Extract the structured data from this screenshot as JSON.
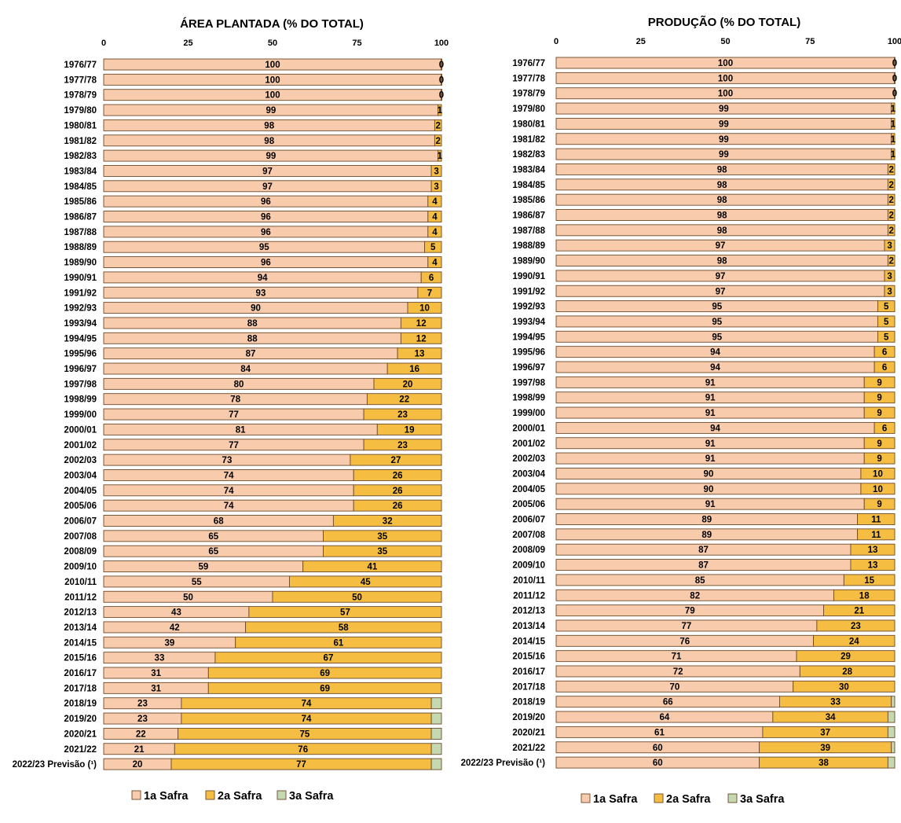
{
  "chart_data": [
    {
      "type": "bar",
      "orientation": "horizontal",
      "stacked": true,
      "title": "ÁREA PLANTADA (% DO TOTAL)",
      "xlim": [
        0,
        100
      ],
      "xticks": [
        "0",
        "25",
        "50",
        "75",
        "100"
      ],
      "legend": {
        "placement": "bottom",
        "entries": [
          "1a Safra",
          "2a Safra",
          "3a Safra"
        ]
      },
      "categories": [
        "1976/77",
        "1977/78",
        "1978/79",
        "1979/80",
        "1980/81",
        "1981/82",
        "1982/83",
        "1983/84",
        "1984/85",
        "1985/86",
        "1986/87",
        "1987/88",
        "1988/89",
        "1989/90",
        "1990/91",
        "1991/92",
        "1992/93",
        "1993/94",
        "1994/95",
        "1995/96",
        "1996/97",
        "1997/98",
        "1998/99",
        "1999/00",
        "2000/01",
        "2001/02",
        "2002/03",
        "2003/04",
        "2004/05",
        "2005/06",
        "2006/07",
        "2007/08",
        "2008/09",
        "2009/10",
        "2010/11",
        "2011/12",
        "2012/13",
        "2013/14",
        "2014/15",
        "2015/16",
        "2016/17",
        "2017/18",
        "2018/19",
        "2019/20",
        "2020/21",
        "2021/22",
        "2022/23 Previsão (¹)"
      ],
      "series": [
        {
          "name": "1a Safra",
          "color": "#f8cbad",
          "values": [
            100,
            100,
            100,
            99,
            98,
            98,
            99,
            97,
            97,
            96,
            96,
            96,
            95,
            96,
            94,
            93,
            90,
            88,
            88,
            87,
            84,
            80,
            78,
            77,
            81,
            77,
            73,
            74,
            74,
            74,
            68,
            65,
            65,
            59,
            55,
            50,
            43,
            42,
            39,
            33,
            31,
            31,
            23,
            23,
            22,
            21,
            20
          ]
        },
        {
          "name": "2a Safra",
          "color": "#f5bd42",
          "values": [
            0,
            0,
            0,
            1,
            2,
            2,
            1,
            3,
            3,
            4,
            4,
            4,
            5,
            4,
            6,
            7,
            10,
            12,
            12,
            13,
            16,
            20,
            22,
            23,
            19,
            23,
            27,
            26,
            26,
            26,
            32,
            35,
            35,
            41,
            45,
            50,
            57,
            58,
            61,
            67,
            69,
            69,
            74,
            74,
            75,
            76,
            77
          ]
        },
        {
          "name": "3a Safra",
          "color": "#c5d9b1",
          "values": [
            0,
            0,
            0,
            0,
            0,
            0,
            0,
            0,
            0,
            0,
            0,
            0,
            0,
            0,
            0,
            0,
            0,
            0,
            0,
            0,
            0,
            0,
            0,
            0,
            0,
            0,
            0,
            0,
            0,
            0,
            0,
            0,
            0,
            0,
            0,
            0,
            0,
            0,
            0,
            0,
            0,
            0,
            3,
            3,
            3,
            3,
            3
          ]
        }
      ]
    },
    {
      "type": "bar",
      "orientation": "horizontal",
      "stacked": true,
      "title": "PRODUÇÃO (% DO TOTAL)",
      "xlim": [
        0,
        100
      ],
      "xticks": [
        "0",
        "25",
        "50",
        "75",
        "100"
      ],
      "legend": {
        "placement": "bottom",
        "entries": [
          "1a Safra",
          "2a Safra",
          "3a Safra"
        ]
      },
      "categories": [
        "1976/77",
        "1977/78",
        "1978/79",
        "1979/80",
        "1980/81",
        "1981/82",
        "1982/83",
        "1983/84",
        "1984/85",
        "1985/86",
        "1986/87",
        "1987/88",
        "1988/89",
        "1989/90",
        "1990/91",
        "1991/92",
        "1992/93",
        "1993/94",
        "1994/95",
        "1995/96",
        "1996/97",
        "1997/98",
        "1998/99",
        "1999/00",
        "2000/01",
        "2001/02",
        "2002/03",
        "2003/04",
        "2004/05",
        "2005/06",
        "2006/07",
        "2007/08",
        "2008/09",
        "2009/10",
        "2010/11",
        "2011/12",
        "2012/13",
        "2013/14",
        "2014/15",
        "2015/16",
        "2016/17",
        "2017/18",
        "2018/19",
        "2019/20",
        "2020/21",
        "2021/22",
        "2022/23 Previsão (¹)"
      ],
      "series": [
        {
          "name": "1a Safra",
          "color": "#f8cbad",
          "values": [
            100,
            100,
            100,
            99,
            99,
            99,
            99,
            98,
            98,
            98,
            98,
            98,
            97,
            98,
            97,
            97,
            95,
            95,
            95,
            94,
            94,
            91,
            91,
            91,
            94,
            91,
            91,
            90,
            90,
            91,
            89,
            89,
            87,
            87,
            85,
            82,
            79,
            77,
            76,
            71,
            72,
            70,
            66,
            64,
            61,
            60,
            60
          ]
        },
        {
          "name": "2a Safra",
          "color": "#f5bd42",
          "values": [
            0,
            0,
            0,
            1,
            1,
            1,
            1,
            2,
            2,
            2,
            2,
            2,
            3,
            2,
            3,
            3,
            5,
            5,
            5,
            6,
            6,
            9,
            9,
            9,
            6,
            9,
            9,
            10,
            10,
            9,
            11,
            11,
            13,
            13,
            15,
            18,
            21,
            23,
            24,
            29,
            28,
            30,
            33,
            34,
            37,
            39,
            38
          ]
        },
        {
          "name": "3a Safra",
          "color": "#c5d9b1",
          "values": [
            0,
            0,
            0,
            0,
            0,
            0,
            0,
            0,
            0,
            0,
            0,
            0,
            0,
            0,
            0,
            0,
            0,
            0,
            0,
            0,
            0,
            0,
            0,
            0,
            0,
            0,
            0,
            0,
            0,
            0,
            0,
            0,
            0,
            0,
            0,
            0,
            0,
            0,
            0,
            0,
            0,
            0,
            1,
            2,
            2,
            1,
            2
          ]
        }
      ]
    }
  ]
}
